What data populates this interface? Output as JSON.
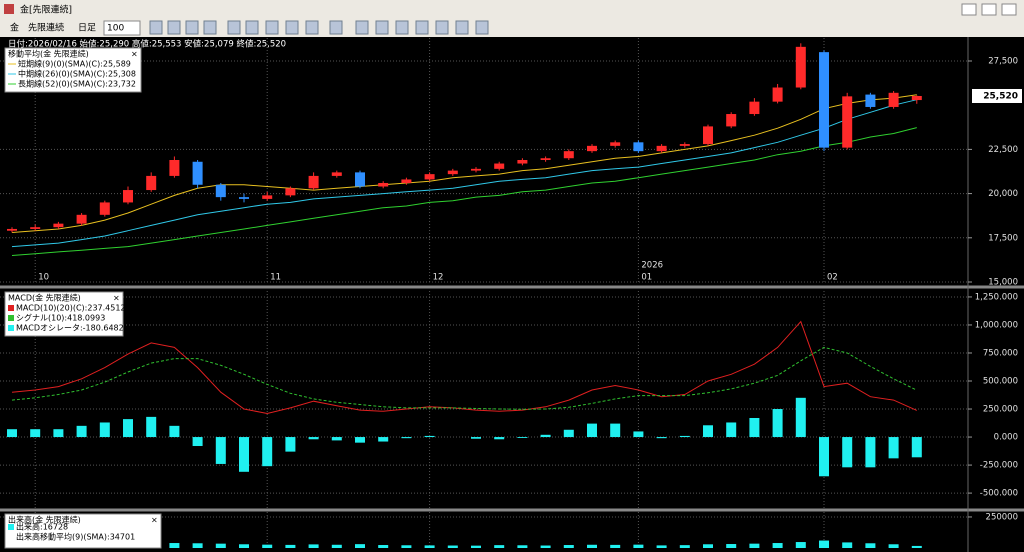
{
  "window": {
    "title": "金[先限連続]",
    "toolbar": [
      "金",
      "先限連続",
      "日足",
      "100"
    ]
  },
  "chart_data": [
    {
      "type": "candlestick",
      "title": "日付:2026/02/16 始値:25,290 高値:25,553 安値:25,079 終値:25,520",
      "categories": [
        null,
        "10",
        null,
        null,
        null,
        null,
        null,
        null,
        null,
        null,
        null,
        "11",
        null,
        null,
        null,
        null,
        null,
        null,
        "12",
        null,
        null,
        null,
        null,
        null,
        null,
        null,
        null,
        "01",
        null,
        null,
        null,
        null,
        null,
        null,
        null,
        "02",
        null,
        null,
        null,
        null
      ],
      "year_label": "2026",
      "open": [
        17900,
        18000,
        18100,
        18300,
        18800,
        19500,
        20200,
        21000,
        21800,
        20500,
        19800,
        19700,
        19900,
        20300,
        21000,
        21200,
        20400,
        20600,
        20800,
        21100,
        21300,
        21400,
        21700,
        21900,
        22000,
        22400,
        22700,
        22900,
        22400,
        22700,
        22800,
        23800,
        24500,
        25200,
        26000,
        28000,
        22600,
        25600,
        24900,
        25290
      ],
      "high": [
        18100,
        18250,
        18400,
        18900,
        19600,
        20400,
        21200,
        22100,
        21900,
        20600,
        20000,
        20100,
        20400,
        21200,
        21300,
        21300,
        20700,
        20900,
        21200,
        21400,
        21500,
        21800,
        22000,
        22100,
        22500,
        22800,
        23000,
        23000,
        22800,
        22900,
        23900,
        24600,
        25400,
        26200,
        28500,
        28100,
        25700,
        25700,
        25800,
        25553
      ],
      "low": [
        17800,
        17900,
        18000,
        18200,
        18700,
        19400,
        20100,
        20900,
        20300,
        19600,
        19500,
        19600,
        19800,
        20200,
        20900,
        20300,
        20300,
        20500,
        20700,
        21000,
        21200,
        21300,
        21600,
        21800,
        21900,
        22300,
        22600,
        22300,
        22300,
        22600,
        22700,
        23700,
        24400,
        25100,
        25900,
        22400,
        22500,
        24800,
        24800,
        25079
      ],
      "close": [
        18000,
        18100,
        18300,
        18800,
        19500,
        20200,
        21000,
        21900,
        20500,
        19800,
        19700,
        19900,
        20300,
        21000,
        21200,
        20400,
        20600,
        20800,
        21100,
        21300,
        21400,
        21700,
        21900,
        22000,
        22400,
        22700,
        22900,
        22400,
        22700,
        22800,
        23800,
        24500,
        25200,
        26000,
        28300,
        22600,
        25500,
        24900,
        25700,
        25520
      ],
      "up_color": "#ff2a2a",
      "down_color": "#2f8fff",
      "legend_title": "移動平均(金 先限連続)",
      "series": [
        {
          "name": "短期線(9)(0)(SMA)(C):25,589",
          "color": "#e8c020",
          "values": [
            17800,
            17900,
            18000,
            18200,
            18500,
            18900,
            19400,
            19900,
            20300,
            20500,
            20500,
            20400,
            20300,
            20200,
            20300,
            20400,
            20500,
            20600,
            20700,
            20900,
            21000,
            21100,
            21300,
            21400,
            21600,
            21800,
            22000,
            22100,
            22300,
            22500,
            22700,
            23000,
            23300,
            23700,
            24200,
            24800,
            25100,
            25300,
            25400,
            25589
          ]
        },
        {
          "name": "中期線(26)(0)(SMA)(C):25,308",
          "color": "#30c8e8",
          "values": [
            17000,
            17100,
            17200,
            17400,
            17600,
            17900,
            18200,
            18500,
            18800,
            19000,
            19200,
            19400,
            19500,
            19700,
            19800,
            19900,
            20000,
            20100,
            20200,
            20300,
            20500,
            20700,
            20800,
            20900,
            21100,
            21300,
            21400,
            21500,
            21700,
            21900,
            22100,
            22300,
            22600,
            22900,
            23300,
            23700,
            24200,
            24600,
            25000,
            25308
          ]
        },
        {
          "name": "長期線(52)(0)(SMA)(C):23,732",
          "color": "#30d030",
          "values": [
            16500,
            16600,
            16700,
            16800,
            16900,
            17000,
            17200,
            17400,
            17600,
            17800,
            18000,
            18200,
            18400,
            18600,
            18800,
            19000,
            19200,
            19300,
            19500,
            19600,
            19800,
            19900,
            20100,
            20200,
            20400,
            20600,
            20700,
            20900,
            21100,
            21300,
            21500,
            21700,
            21900,
            22200,
            22400,
            22700,
            22900,
            23200,
            23400,
            23732
          ]
        }
      ],
      "ylim": [
        15000,
        28800
      ],
      "yticks": [
        {
          "value": 15000,
          "label": "15,000"
        },
        {
          "value": 17500,
          "label": "17,500"
        },
        {
          "value": 20000,
          "label": "20,000"
        },
        {
          "value": 22500,
          "label": "22,500"
        },
        {
          "value": 27500,
          "label": "27,500"
        }
      ],
      "last_price": {
        "value": 25520,
        "label": "25,520"
      },
      "grid": true
    },
    {
      "type": "combo",
      "legend_title": "MACD(金 先限連続)",
      "series": [
        {
          "name": "MACD(10)(20)(C):237.4512",
          "kind": "line",
          "color": "#e02020",
          "values": [
            400,
            420,
            450,
            520,
            620,
            740,
            840,
            800,
            620,
            400,
            250,
            210,
            260,
            320,
            280,
            240,
            230,
            250,
            270,
            260,
            240,
            230,
            240,
            270,
            330,
            420,
            460,
            420,
            360,
            380,
            500,
            560,
            650,
            800,
            1030,
            450,
            480,
            360,
            330,
            237.4512
          ]
        },
        {
          "name": "シグナル(10):418.0993",
          "kind": "dashed",
          "color": "#30c030",
          "values": [
            330,
            350,
            380,
            420,
            490,
            580,
            660,
            700,
            700,
            640,
            560,
            470,
            390,
            340,
            310,
            290,
            270,
            260,
            260,
            260,
            255,
            250,
            248,
            250,
            265,
            300,
            340,
            370,
            370,
            370,
            395,
            430,
            480,
            550,
            680,
            800,
            750,
            630,
            520,
            418.0993
          ]
        },
        {
          "name": "MACDオシレータ:-180.6482",
          "kind": "bar",
          "color": "#20f0f0",
          "values": [
            70,
            70,
            70,
            100,
            130,
            160,
            180,
            100,
            -80,
            -240,
            -310,
            -260,
            -130,
            -20,
            -30,
            -50,
            -40,
            -10,
            10,
            0,
            -15,
            -20,
            -8,
            20,
            65,
            120,
            120,
            50,
            -10,
            10,
            105,
            130,
            170,
            250,
            350,
            -350,
            -270,
            -270,
            -190,
            -180.6482
          ]
        }
      ],
      "ylim": [
        -633,
        1303
      ],
      "yticks": [
        {
          "value": 1250,
          "label": "1,250.000"
        },
        {
          "value": 1000,
          "label": "1,000.000"
        },
        {
          "value": 750,
          "label": "750.000"
        },
        {
          "value": 500,
          "label": "500.000"
        },
        {
          "value": 250,
          "label": "250.000"
        },
        {
          "value": 0,
          "label": "0.000"
        },
        {
          "value": -250,
          "label": "-250.000"
        },
        {
          "value": -500,
          "label": "-500.000"
        }
      ],
      "grid": true
    },
    {
      "type": "bar",
      "legend_title": "出来高(金 先限連続)",
      "series": [
        {
          "name": "出来高:16728",
          "color": "#20f0f0",
          "values": [
            22000,
            25000,
            21000,
            30000,
            28000,
            33000,
            36000,
            40000,
            38000,
            35000,
            30000,
            27000,
            25000,
            29000,
            26000,
            31000,
            24000,
            22000,
            21000,
            20000,
            19000,
            23000,
            22000,
            20000,
            24000,
            26000,
            25000,
            27000,
            21000,
            23000,
            30000,
            32000,
            35000,
            40000,
            48000,
            60000,
            45000,
            38000,
            30000,
            16728
          ]
        }
      ],
      "ma_label": "出来高移動平均(9)(SMA):34701",
      "ylim": [
        0,
        290000
      ],
      "yticks": [
        250000
      ],
      "grid": true
    }
  ]
}
